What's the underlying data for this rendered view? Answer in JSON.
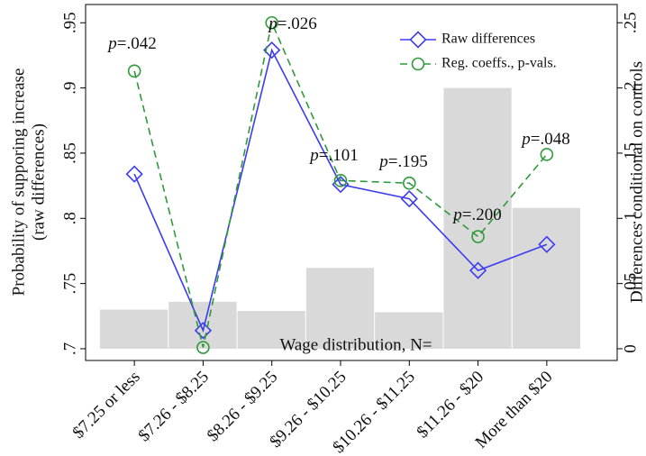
{
  "chart_data": {
    "type": "line",
    "categories": [
      "$7.25 or less",
      "$7.26 - $8.25",
      "$8.26 - $9.25",
      "$9.26 - $10.25",
      "$10.26 - $11.25",
      "$11.26 - $20",
      "More than $20"
    ],
    "ylabel": [
      "Probability of supporing increase",
      "(raw differences)"
    ],
    "y2label": "Differences conditional on controls",
    "ylim": [
      0.691,
      0.964
    ],
    "yticks": [
      {
        "value": 0.7,
        "label": ".7"
      },
      {
        "value": 0.75,
        "label": ".75"
      },
      {
        "value": 0.8,
        "label": ".8"
      },
      {
        "value": 0.85,
        "label": ".85"
      },
      {
        "value": 0.9,
        "label": ".9"
      },
      {
        "value": 0.95,
        "label": ".95"
      }
    ],
    "y2lim": [
      -0.009,
      0.264
    ],
    "y2ticks": [
      0,
      {
        "value": 0.05,
        "label": ".05"
      },
      {
        "value": 0.1,
        "label": ".1"
      },
      {
        "value": 0.15,
        "label": ".15"
      },
      {
        "value": 0.2,
        "label": ".2"
      },
      {
        "value": 0.25,
        "label": ".25"
      }
    ],
    "bars": {
      "name": "Wage distribution, N=",
      "color": "#d9d9d9",
      "axis": "y2",
      "values": [
        0.03,
        0.036,
        0.029,
        0.062,
        0.028,
        0.2,
        0.108
      ]
    },
    "series": [
      {
        "name": "Raw differences",
        "color": "#3c3cf0",
        "marker": "diamond",
        "dash": false,
        "values": [
          0.834,
          0.714,
          0.929,
          0.826,
          0.815,
          0.76,
          0.78
        ]
      },
      {
        "name": "Reg. coeffs., p-vals.",
        "color": "#2f9a3a",
        "marker": "circle",
        "dash": true,
        "axis": "y2",
        "values": [
          0.213,
          0.001,
          0.25,
          0.129,
          0.127,
          0.086,
          0.149
        ]
      }
    ],
    "annotations": [
      "p=.042",
      "p=.026",
      "p=.101",
      "p=.195",
      "p=.200",
      "p=.048"
    ],
    "legend": "top-right"
  }
}
